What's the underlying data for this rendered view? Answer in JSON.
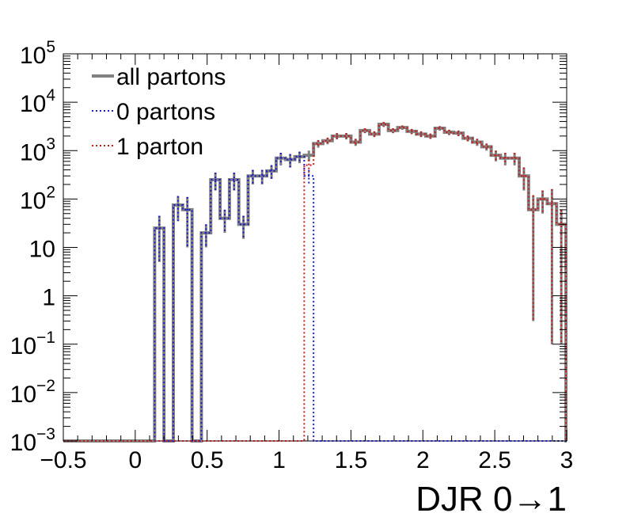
{
  "chart_data": {
    "type": "line",
    "style": "step histogram",
    "x_scale": "linear",
    "y_scale": "log",
    "xlabel": "DJR 0→1",
    "ylabel": "",
    "xlim": [
      -0.5,
      3.0
    ],
    "ylim": [
      0.001,
      100000
    ],
    "grid": false,
    "legend_position": "top-left",
    "x_ticks": [
      -0.5,
      0,
      0.5,
      1,
      1.5,
      2,
      2.5,
      3
    ],
    "x_tick_labels": [
      "−0.5",
      "0",
      "0.5",
      "1",
      "1.5",
      "2",
      "2.5",
      "3"
    ],
    "y_ticks": [
      0.001,
      0.01,
      0.1,
      1,
      10,
      100,
      1000,
      10000,
      100000
    ],
    "y_tick_labels": [
      {
        "base": "10",
        "exp": "−3"
      },
      {
        "base": "10",
        "exp": "−2"
      },
      {
        "base": "10",
        "exp": "−1"
      },
      {
        "base": "1",
        "exp": ""
      },
      {
        "base": "10",
        "exp": ""
      },
      {
        "base": "10",
        "exp": "2"
      },
      {
        "base": "10",
        "exp": "3"
      },
      {
        "base": "10",
        "exp": "4"
      },
      {
        "base": "10",
        "exp": "5"
      }
    ],
    "bin_edges": [
      0.135,
      0.2,
      0.265,
      0.33,
      0.395,
      0.46,
      0.525,
      0.59,
      0.655,
      0.72,
      0.785,
      0.85,
      0.915,
      0.98,
      1.045,
      1.11,
      1.175,
      1.24,
      1.305,
      1.37,
      1.435,
      1.5,
      1.565,
      1.63,
      1.695,
      1.76,
      1.825,
      1.89,
      1.955,
      2.02,
      2.085,
      2.15,
      2.215,
      2.28,
      2.345,
      2.41,
      2.475,
      2.54,
      2.605,
      2.67,
      2.735,
      2.8,
      2.865,
      2.93,
      2.995
    ],
    "series": [
      {
        "name": "all partons",
        "color": "#808080",
        "line_style": "solid",
        "values": [
          25,
          0.001,
          75,
          60,
          0.001,
          20,
          250,
          40,
          250,
          30,
          300,
          300,
          380,
          700,
          650,
          750,
          800,
          1400,
          1600,
          2000,
          2000,
          1500,
          2600,
          2200,
          3500,
          2600,
          3000,
          2500,
          2200,
          2000,
          2900,
          2400,
          2300,
          1800,
          1500,
          1200,
          800,
          700,
          700,
          300,
          60,
          100,
          80,
          30
        ],
        "error": [
          20,
          0,
          40,
          50,
          0,
          10,
          100,
          20,
          100,
          15,
          100,
          100,
          120,
          200,
          200,
          200,
          200,
          250,
          250,
          300,
          300,
          250,
          300,
          300,
          400,
          300,
          300,
          300,
          300,
          250,
          300,
          300,
          300,
          250,
          250,
          200,
          200,
          200,
          200,
          150,
          59.7,
          50,
          79.9,
          29.9
        ]
      },
      {
        "name": "0 partons",
        "color": "#1a1acc",
        "line_style": "dotted",
        "values": [
          25,
          0.001,
          75,
          60,
          0.001,
          20,
          250,
          40,
          250,
          30,
          300,
          300,
          380,
          700,
          650,
          750,
          300,
          0.001,
          0.001,
          0.001,
          0.001,
          0.001,
          0.001,
          0.001,
          0.001,
          0.001,
          0.001,
          0.001,
          0.001,
          0.001,
          0.001,
          0.001,
          0.001,
          0.001,
          0.001,
          0.001,
          0.001,
          0.001,
          0.001,
          0.001,
          0.001,
          0.001,
          0.001,
          0.001
        ],
        "error": [
          20,
          0,
          40,
          50,
          0,
          10,
          100,
          20,
          100,
          15,
          100,
          100,
          120,
          200,
          200,
          200,
          100,
          0,
          0,
          0,
          0,
          0,
          0,
          0,
          0,
          0,
          0,
          0,
          0,
          0,
          0,
          0,
          0,
          0,
          0,
          0,
          0,
          0,
          0,
          0,
          0,
          0,
          0,
          0
        ]
      },
      {
        "name": "1 parton",
        "color": "#cc1a1a",
        "line_style": "dotted",
        "values": [
          0.001,
          0.001,
          0.001,
          0.001,
          0.001,
          0.001,
          0.001,
          0.001,
          0.001,
          0.001,
          0.001,
          0.001,
          0.001,
          0.001,
          0.001,
          0.001,
          500,
          1400,
          1600,
          2000,
          2000,
          1500,
          2600,
          2200,
          3500,
          2600,
          3000,
          2500,
          2200,
          2000,
          2900,
          2400,
          2300,
          1800,
          1500,
          1200,
          800,
          700,
          700,
          300,
          60,
          100,
          80,
          30
        ],
        "error": [
          0,
          0,
          0,
          0,
          0,
          0,
          0,
          0,
          0,
          0,
          0,
          0,
          0,
          0,
          0,
          0,
          150,
          250,
          250,
          300,
          300,
          250,
          300,
          300,
          400,
          300,
          300,
          300,
          300,
          250,
          300,
          300,
          300,
          250,
          250,
          200,
          200,
          200,
          200,
          150,
          59.7,
          50,
          79.9,
          29.9
        ]
      }
    ]
  }
}
